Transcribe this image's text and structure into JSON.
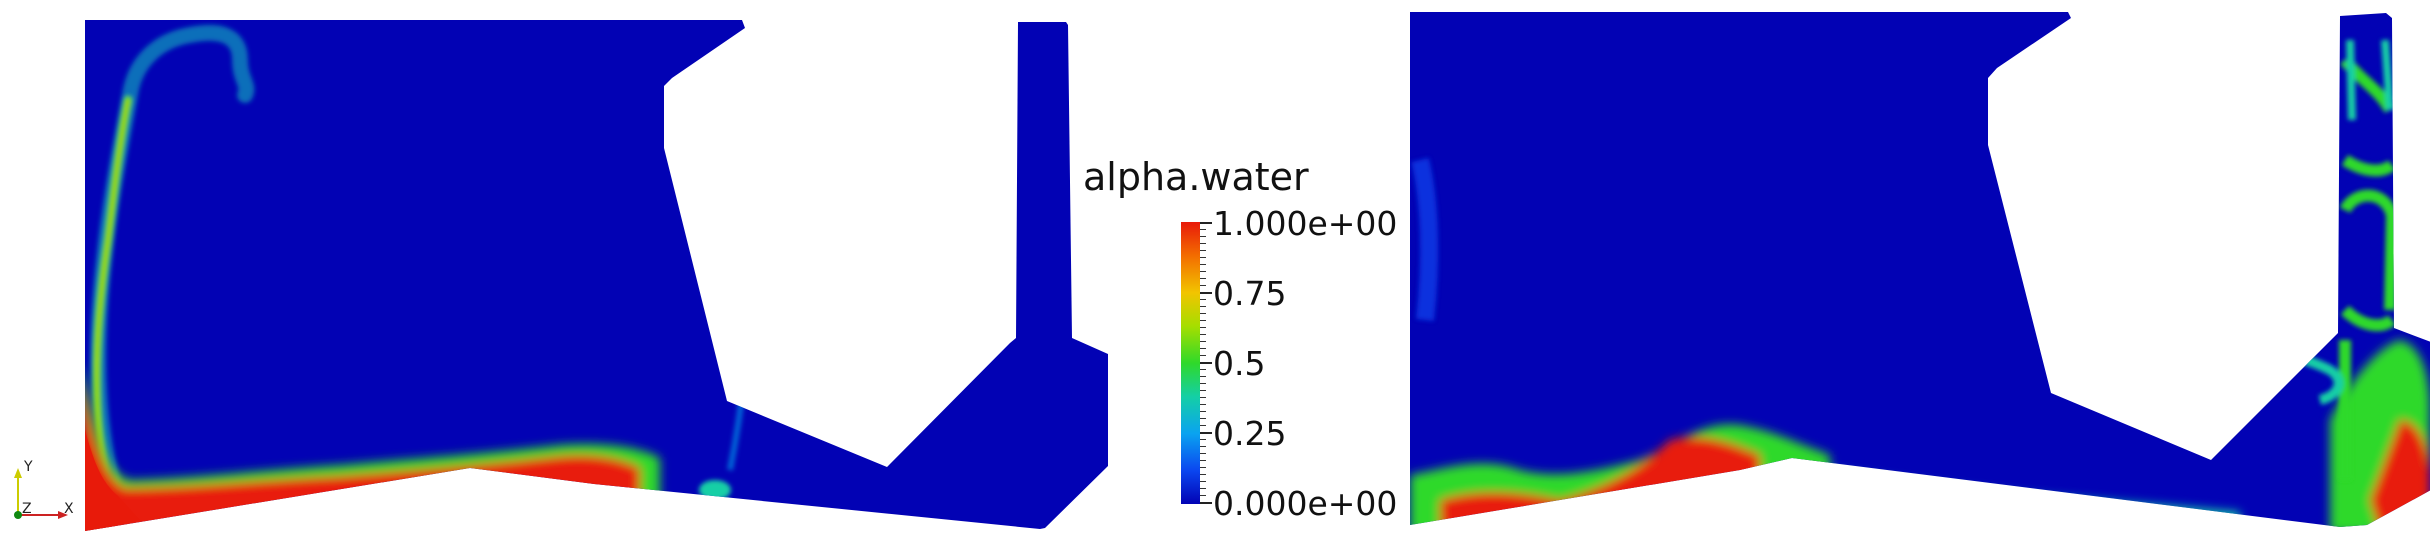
{
  "colorbar": {
    "title": "alpha.water",
    "labels": {
      "max": "1.000e+00",
      "q3": "0.75",
      "mid": "0.5",
      "q1": "0.25",
      "min": "0.000e+00"
    },
    "colors": [
      "#e81a0a",
      "#f36d00",
      "#f2c400",
      "#a5de00",
      "#2fd92a",
      "#14cfa6",
      "#0aa3f0",
      "#0b47f0",
      "#0202b4"
    ]
  },
  "orientation_axes": {
    "y_label": "Y",
    "z_label": "Z",
    "x_label": "X"
  }
}
